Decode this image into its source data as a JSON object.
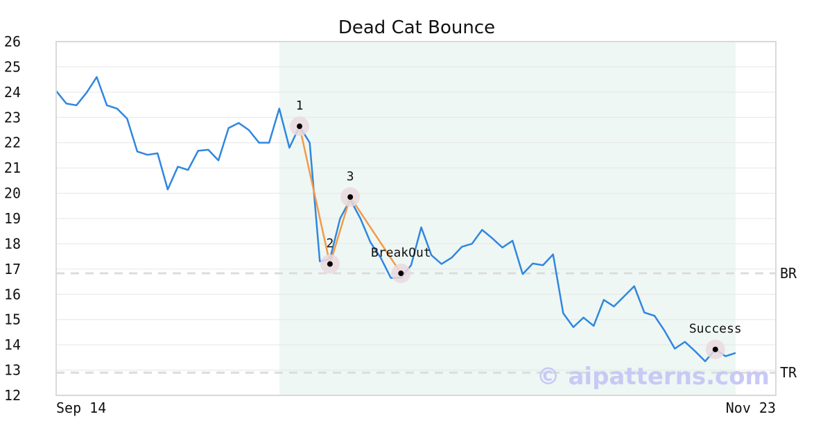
{
  "chart_data": {
    "type": "line",
    "title": "Dead Cat Bounce",
    "xlabel": "",
    "ylabel": "",
    "ylim": [
      12,
      26
    ],
    "yticks": [
      12,
      13,
      14,
      15,
      16,
      17,
      18,
      19,
      20,
      21,
      22,
      23,
      24,
      25,
      26
    ],
    "xtick_labels": [
      "Sep 14",
      "Nov 23"
    ],
    "grid": true,
    "line_color": "#2f86e0",
    "pattern_color": "#f39a47",
    "highlight_color": "#eef7f3",
    "series": [
      {
        "values": [
          24.05,
          23.55,
          23.48,
          23.98,
          24.6,
          23.48,
          23.35,
          22.95,
          21.65,
          21.52,
          21.58,
          20.15,
          21.05,
          20.92,
          21.68,
          21.72,
          21.3,
          22.58,
          22.78,
          22.5,
          22.0,
          22.0,
          23.35,
          21.8,
          22.65,
          22.0,
          17.3,
          17.4,
          19.0,
          19.75,
          19.0,
          18.05,
          17.45,
          16.65,
          16.65,
          17.15,
          18.65,
          17.55,
          17.2,
          17.45,
          17.88,
          18.0,
          18.55,
          18.22,
          17.85,
          18.12,
          16.8,
          17.22,
          17.15,
          17.58,
          15.25,
          14.7,
          15.08,
          14.75,
          15.78,
          15.52,
          15.92,
          16.32,
          15.28,
          15.15,
          14.55,
          13.85,
          14.12,
          13.75,
          13.35,
          13.82,
          13.55,
          13.68
        ]
      }
    ],
    "highlight": {
      "start_index": 22,
      "end_index": 67
    },
    "pattern_points": [
      {
        "label": "1",
        "index": 24,
        "value": 22.65
      },
      {
        "label": "2",
        "index": 27,
        "value": 17.2
      },
      {
        "label": "3",
        "index": 29,
        "value": 19.85
      },
      {
        "label": "BreakOut",
        "index": 34,
        "value": 16.83
      }
    ],
    "success_point": {
      "label": "Success",
      "index": 65,
      "value": 13.82
    },
    "levels": [
      {
        "label": "BR",
        "value": 16.83
      },
      {
        "label": "TR",
        "value": 12.9
      }
    ],
    "watermark": "© aipatterns.com"
  }
}
